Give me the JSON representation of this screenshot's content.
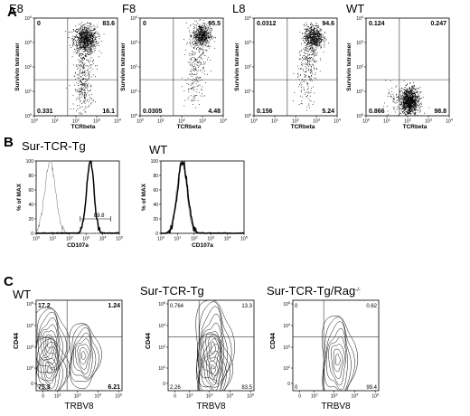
{
  "chart_data": [
    {
      "panel": "A",
      "type": "scatter",
      "title": "E8",
      "xlabel": "TCRbeta",
      "ylabel": "Survivin tetramer",
      "x_scale": "log",
      "y_scale": "log",
      "xlim": [
        1,
        10000
      ],
      "ylim": [
        1,
        10000
      ],
      "x_ticks": [
        "10^0",
        "10^1",
        "10^2",
        "10^3",
        "10^4"
      ],
      "y_ticks": [
        "10^0",
        "10^1",
        "10^2",
        "10^3",
        "10^4"
      ],
      "gate": {
        "x": 40,
        "y": 30
      },
      "quadrants": {
        "upper_left": "0",
        "upper_right": "83.6",
        "lower_left": "0.331",
        "lower_right": "16.1"
      },
      "clusters": [
        {
          "cx": 280,
          "cy": 1400,
          "sx": 0.28,
          "sy": 0.28,
          "n": 900
        },
        {
          "cx": 220,
          "cy": 12,
          "sx": 0.22,
          "sy": 0.45,
          "n": 220
        },
        {
          "cx": 250,
          "cy": 150,
          "sx": 0.22,
          "sy": 0.35,
          "n": 120
        }
      ]
    },
    {
      "panel": "A",
      "type": "scatter",
      "title": "F8",
      "xlabel": "TCRbeta",
      "ylabel": "Survivin tetramer",
      "x_scale": "log",
      "y_scale": "log",
      "xlim": [
        1,
        10000
      ],
      "ylim": [
        1,
        10000
      ],
      "x_ticks": [
        "10^0",
        "10^1",
        "10^2",
        "10^3",
        "10^4"
      ],
      "y_ticks": [
        "10^0",
        "10^1",
        "10^2",
        "10^3",
        "10^4"
      ],
      "gate": {
        "x": 40,
        "y": 30
      },
      "quadrants": {
        "upper_left": "0",
        "upper_right": "95.5",
        "lower_left": "0.0305",
        "lower_right": "4.48"
      },
      "clusters": [
        {
          "cx": 900,
          "cy": 2000,
          "sx": 0.22,
          "sy": 0.24,
          "n": 600
        },
        {
          "cx": 500,
          "cy": 200,
          "sx": 0.25,
          "sy": 0.55,
          "n": 180
        },
        {
          "cx": 350,
          "cy": 12,
          "sx": 0.22,
          "sy": 0.4,
          "n": 60
        }
      ]
    },
    {
      "panel": "A",
      "type": "scatter",
      "title": "L8",
      "xlabel": "TCRbeta",
      "ylabel": "Survivin tetramer",
      "x_scale": "log",
      "y_scale": "log",
      "xlim": [
        1,
        10000
      ],
      "ylim": [
        1,
        10000
      ],
      "x_ticks": [
        "10^0",
        "10^1",
        "10^2",
        "10^3",
        "10^4"
      ],
      "y_ticks": [
        "10^0",
        "10^1",
        "10^2",
        "10^3",
        "10^4"
      ],
      "gate": {
        "x": 40,
        "y": 30
      },
      "quadrants": {
        "upper_left": "0.0312",
        "upper_right": "94.6",
        "lower_left": "0.156",
        "lower_right": "5.24"
      },
      "clusters": [
        {
          "cx": 700,
          "cy": 1700,
          "sx": 0.22,
          "sy": 0.24,
          "n": 650
        },
        {
          "cx": 400,
          "cy": 150,
          "sx": 0.25,
          "sy": 0.5,
          "n": 200
        },
        {
          "cx": 300,
          "cy": 12,
          "sx": 0.22,
          "sy": 0.4,
          "n": 60
        }
      ]
    },
    {
      "panel": "A",
      "type": "scatter",
      "title": "WT",
      "xlabel": "TCRbeta",
      "ylabel": "Survivin tetramer",
      "x_scale": "log",
      "y_scale": "log",
      "xlim": [
        1,
        10000
      ],
      "ylim": [
        1,
        10000
      ],
      "x_ticks": [
        "10^0",
        "10^1",
        "10^2",
        "10^3",
        "10^4"
      ],
      "y_ticks": [
        "10^0",
        "10^1",
        "10^2",
        "10^3",
        "10^4"
      ],
      "gate": {
        "x": 40,
        "y": 30
      },
      "quadrants": {
        "upper_left": "0.124",
        "upper_right": "0.247",
        "lower_left": "0.866",
        "lower_right": "98.8"
      },
      "clusters": [
        {
          "cx": 120,
          "cy": 4,
          "sx": 0.22,
          "sy": 0.28,
          "n": 1100
        },
        {
          "cx": 20,
          "cy": 4,
          "sx": 0.25,
          "sy": 0.3,
          "n": 60
        }
      ]
    },
    {
      "panel": "B",
      "type": "line",
      "title": "Sur-TCR-Tg",
      "xlabel": "CD107a",
      "ylabel": "% of MAX",
      "x_scale": "log",
      "xlim": [
        1,
        100000
      ],
      "ylim": [
        0,
        100
      ],
      "x_ticks": [
        "10^0",
        "10^1",
        "10^2",
        "10^3",
        "10^4",
        "10^5"
      ],
      "y_ticks": [
        "0",
        "20",
        "40",
        "60",
        "80",
        "100"
      ],
      "gate_label": "89.8",
      "gate_range": [
        450,
        30000
      ],
      "gate_y": 20,
      "series": [
        {
          "style": "thin-grey",
          "peak_x": 7,
          "peak_y": 98,
          "width": 0.32
        },
        {
          "style": "thick-black",
          "peak_x": 1800,
          "peak_y": 100,
          "width": 0.22
        }
      ]
    },
    {
      "panel": "B",
      "type": "line",
      "title": "WT",
      "xlabel": "CD107a",
      "ylabel": "% of MAX",
      "x_scale": "log",
      "xlim": [
        1,
        100000
      ],
      "ylim": [
        0,
        100
      ],
      "x_ticks": [
        "10^0",
        "10^1",
        "10^2",
        "10^3",
        "10^4",
        "10^5"
      ],
      "y_ticks": [
        "0",
        "20",
        "40",
        "60",
        "80",
        "100"
      ],
      "series": [
        {
          "style": "thin-grey",
          "peak_x": 18,
          "peak_y": 100,
          "width": 0.3
        },
        {
          "style": "thick-black",
          "peak_x": 20,
          "peak_y": 100,
          "width": 0.3
        }
      ]
    },
    {
      "panel": "C",
      "type": "heatmap",
      "subtype": "contour",
      "title": "WT",
      "title_superscript": "",
      "xlabel": "TRBV8",
      "ylabel": "CD44",
      "x_scale": "biexponential",
      "y_scale": "biexponential",
      "x_ticks": [
        "0",
        "10^2",
        "10^3",
        "10^4",
        "10^5"
      ],
      "y_ticks": [
        "0",
        "10^2",
        "10^3",
        "10^4",
        "10^5"
      ],
      "gate": {
        "x": 300,
        "y": 3000
      },
      "quadrants": {
        "upper_left": "17.2",
        "upper_right": "1.24",
        "lower_left": "75.3",
        "lower_right": "6.21"
      },
      "populations": [
        {
          "cx": 8,
          "cy": 1500,
          "rx": 0.22,
          "ry": 0.45
        },
        {
          "cx": 8,
          "cy": 60,
          "rx": 0.22,
          "ry": 0.4
        },
        {
          "cx": 2000,
          "cy": 400,
          "rx": 0.2,
          "ry": 0.4
        }
      ]
    },
    {
      "panel": "C",
      "type": "heatmap",
      "subtype": "contour",
      "title": "Sur-TCR-Tg",
      "title_superscript": "",
      "xlabel": "TRBV8",
      "ylabel": "CD44",
      "x_scale": "biexponential",
      "y_scale": "biexponential",
      "x_ticks": [
        "0",
        "10^2",
        "10^3",
        "10^4",
        "10^5"
      ],
      "y_ticks": [
        "0",
        "10^2",
        "10^3",
        "10^4",
        "10^5"
      ],
      "gate": {
        "x": 300,
        "y": 3000
      },
      "quadrants": {
        "upper_left": "0.764",
        "upper_right": "13.3",
        "lower_left": "2.26",
        "lower_right": "83.5"
      },
      "populations": [
        {
          "cx": 1500,
          "cy": 900,
          "rx": 0.24,
          "ry": 0.6
        },
        {
          "cx": 1500,
          "cy": 60,
          "rx": 0.22,
          "ry": 0.45
        }
      ]
    },
    {
      "panel": "C",
      "type": "heatmap",
      "subtype": "contour",
      "title": "Sur-TCR-Tg/Rag",
      "title_superscript": "-/-",
      "xlabel": "TRBV8",
      "ylabel": "CD44",
      "x_scale": "biexponential",
      "y_scale": "biexponential",
      "x_ticks": [
        "0",
        "10^2",
        "10^3",
        "10^4",
        "10^5"
      ],
      "y_ticks": [
        "0",
        "10^2",
        "10^3",
        "10^4",
        "10^5"
      ],
      "gate": {
        "x": 300,
        "y": 3000
      },
      "quadrants": {
        "upper_left": "0",
        "upper_right": "0.62",
        "lower_left": "0",
        "lower_right": "99.4"
      },
      "populations": [
        {
          "cx": 1500,
          "cy": 250,
          "rx": 0.22,
          "ry": 0.55
        }
      ]
    }
  ],
  "panel_letters": [
    "A",
    "B",
    "C"
  ]
}
